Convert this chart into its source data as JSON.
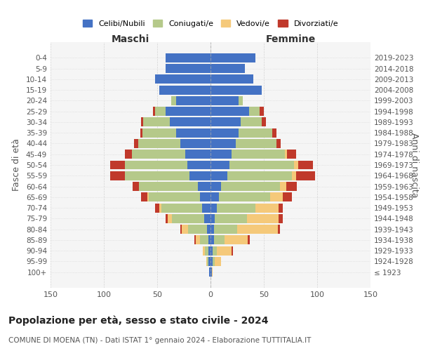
{
  "age_groups": [
    "100+",
    "95-99",
    "90-94",
    "85-89",
    "80-84",
    "75-79",
    "70-74",
    "65-69",
    "60-64",
    "55-59",
    "50-54",
    "45-49",
    "40-44",
    "35-39",
    "30-34",
    "25-29",
    "20-24",
    "15-19",
    "10-14",
    "5-9",
    "0-4"
  ],
  "birth_years": [
    "≤ 1923",
    "1924-1928",
    "1929-1933",
    "1934-1938",
    "1939-1943",
    "1944-1948",
    "1949-1953",
    "1954-1958",
    "1959-1963",
    "1964-1968",
    "1969-1973",
    "1974-1978",
    "1979-1983",
    "1984-1988",
    "1989-1993",
    "1994-1998",
    "1999-2003",
    "2004-2008",
    "2009-2013",
    "2014-2018",
    "2019-2023"
  ],
  "males": {
    "celibi": [
      1,
      2,
      2,
      2,
      3,
      6,
      8,
      10,
      12,
      20,
      22,
      24,
      28,
      32,
      38,
      42,
      32,
      48,
      52,
      42,
      42
    ],
    "coniugati": [
      0,
      1,
      3,
      8,
      18,
      30,
      38,
      48,
      55,
      60,
      58,
      50,
      40,
      32,
      25,
      10,
      5,
      0,
      0,
      0,
      0
    ],
    "vedovi": [
      0,
      1,
      2,
      4,
      6,
      4,
      2,
      1,
      0,
      0,
      0,
      0,
      0,
      0,
      0,
      0,
      0,
      0,
      0,
      0,
      0
    ],
    "divorziati": [
      0,
      0,
      0,
      1,
      1,
      2,
      4,
      6,
      6,
      14,
      14,
      6,
      4,
      2,
      2,
      2,
      0,
      0,
      0,
      0,
      0
    ]
  },
  "females": {
    "nubili": [
      1,
      2,
      2,
      3,
      3,
      4,
      6,
      8,
      10,
      16,
      18,
      20,
      24,
      26,
      28,
      36,
      26,
      48,
      40,
      32,
      42
    ],
    "coniugate": [
      0,
      2,
      4,
      10,
      22,
      30,
      36,
      48,
      55,
      60,
      60,
      50,
      38,
      32,
      20,
      10,
      4,
      0,
      0,
      0,
      0
    ],
    "vedove": [
      1,
      6,
      14,
      22,
      38,
      30,
      22,
      12,
      6,
      4,
      4,
      2,
      0,
      0,
      0,
      0,
      0,
      0,
      0,
      0,
      0
    ],
    "divorziate": [
      0,
      0,
      1,
      2,
      2,
      4,
      4,
      8,
      10,
      18,
      14,
      8,
      4,
      4,
      4,
      4,
      0,
      0,
      0,
      0,
      0
    ]
  },
  "colors": {
    "celibi_nubili": "#4472c4",
    "coniugati": "#b5c98a",
    "vedovi": "#f5c97a",
    "divorziati": "#c0392b"
  },
  "xlim": 150,
  "title": "Popolazione per età, sesso e stato civile - 2024",
  "subtitle": "COMUNE DI MOENA (TN) - Dati ISTAT 1° gennaio 2024 - Elaborazione TUTTITALIA.IT",
  "xlabel_left": "Maschi",
  "xlabel_right": "Femmine",
  "ylabel_left": "Fasce di età",
  "ylabel_right": "Anni di nascita",
  "background_color": "#ffffff",
  "grid_color": "#cccccc"
}
